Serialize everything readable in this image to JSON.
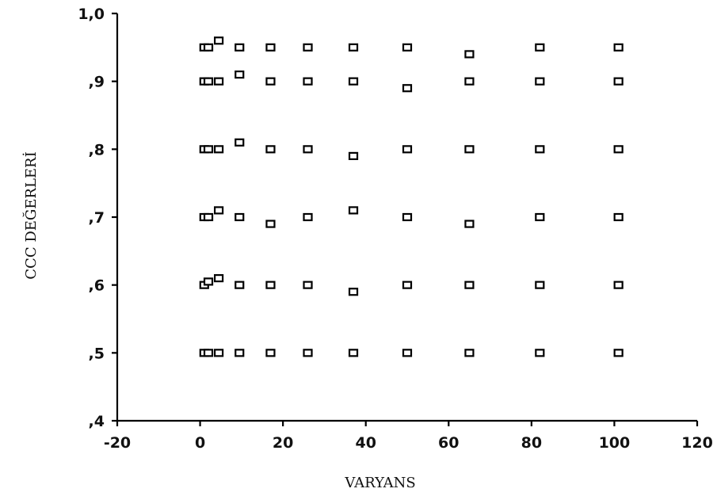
{
  "chart_data": {
    "type": "scatter",
    "title": "",
    "xlabel": "VARYANS",
    "ylabel": "CCC DEĞERLERİ",
    "xlim": [
      -20,
      120
    ],
    "ylim": [
      0.4,
      1.0
    ],
    "x_ticks": [
      -20,
      0,
      20,
      40,
      60,
      80,
      100,
      120
    ],
    "x_tick_labels": [
      "-20",
      "0",
      "20",
      "40",
      "60",
      "80",
      "100",
      "120"
    ],
    "y_ticks": [
      0.4,
      0.5,
      0.6,
      0.7,
      0.8,
      0.9,
      1.0
    ],
    "y_tick_labels": [
      ",4",
      ",5",
      ",6",
      ",7",
      ",8",
      ",9",
      "1,0"
    ],
    "grid": false,
    "marker": "open-square",
    "points": [
      {
        "x": 1,
        "y": 0.95
      },
      {
        "x": 2,
        "y": 0.95
      },
      {
        "x": 4.5,
        "y": 0.96
      },
      {
        "x": 9.5,
        "y": 0.95
      },
      {
        "x": 17,
        "y": 0.95
      },
      {
        "x": 26,
        "y": 0.95
      },
      {
        "x": 37,
        "y": 0.95
      },
      {
        "x": 50,
        "y": 0.95
      },
      {
        "x": 65,
        "y": 0.94
      },
      {
        "x": 82,
        "y": 0.95
      },
      {
        "x": 101,
        "y": 0.95
      },
      {
        "x": 1,
        "y": 0.9
      },
      {
        "x": 2,
        "y": 0.9
      },
      {
        "x": 4.5,
        "y": 0.9
      },
      {
        "x": 9.5,
        "y": 0.91
      },
      {
        "x": 17,
        "y": 0.9
      },
      {
        "x": 26,
        "y": 0.9
      },
      {
        "x": 37,
        "y": 0.9
      },
      {
        "x": 50,
        "y": 0.89
      },
      {
        "x": 65,
        "y": 0.9
      },
      {
        "x": 82,
        "y": 0.9
      },
      {
        "x": 101,
        "y": 0.9
      },
      {
        "x": 1,
        "y": 0.8
      },
      {
        "x": 2,
        "y": 0.8
      },
      {
        "x": 4.5,
        "y": 0.8
      },
      {
        "x": 9.5,
        "y": 0.81
      },
      {
        "x": 17,
        "y": 0.8
      },
      {
        "x": 26,
        "y": 0.8
      },
      {
        "x": 37,
        "y": 0.79
      },
      {
        "x": 50,
        "y": 0.8
      },
      {
        "x": 65,
        "y": 0.8
      },
      {
        "x": 82,
        "y": 0.8
      },
      {
        "x": 101,
        "y": 0.8
      },
      {
        "x": 1,
        "y": 0.7
      },
      {
        "x": 2,
        "y": 0.7
      },
      {
        "x": 4.5,
        "y": 0.71
      },
      {
        "x": 9.5,
        "y": 0.7
      },
      {
        "x": 17,
        "y": 0.69
      },
      {
        "x": 26,
        "y": 0.7
      },
      {
        "x": 37,
        "y": 0.71
      },
      {
        "x": 50,
        "y": 0.7
      },
      {
        "x": 65,
        "y": 0.69
      },
      {
        "x": 82,
        "y": 0.7
      },
      {
        "x": 101,
        "y": 0.7
      },
      {
        "x": 1,
        "y": 0.6
      },
      {
        "x": 2,
        "y": 0.605
      },
      {
        "x": 4.5,
        "y": 0.61
      },
      {
        "x": 9.5,
        "y": 0.6
      },
      {
        "x": 17,
        "y": 0.6
      },
      {
        "x": 26,
        "y": 0.6
      },
      {
        "x": 37,
        "y": 0.59
      },
      {
        "x": 50,
        "y": 0.6
      },
      {
        "x": 65,
        "y": 0.6
      },
      {
        "x": 82,
        "y": 0.6
      },
      {
        "x": 101,
        "y": 0.6
      },
      {
        "x": 1,
        "y": 0.5
      },
      {
        "x": 2,
        "y": 0.5
      },
      {
        "x": 4.5,
        "y": 0.5
      },
      {
        "x": 9.5,
        "y": 0.5
      },
      {
        "x": 17,
        "y": 0.5
      },
      {
        "x": 26,
        "y": 0.5
      },
      {
        "x": 37,
        "y": 0.5
      },
      {
        "x": 50,
        "y": 0.5
      },
      {
        "x": 65,
        "y": 0.5
      },
      {
        "x": 82,
        "y": 0.5
      },
      {
        "x": 101,
        "y": 0.5
      }
    ]
  }
}
